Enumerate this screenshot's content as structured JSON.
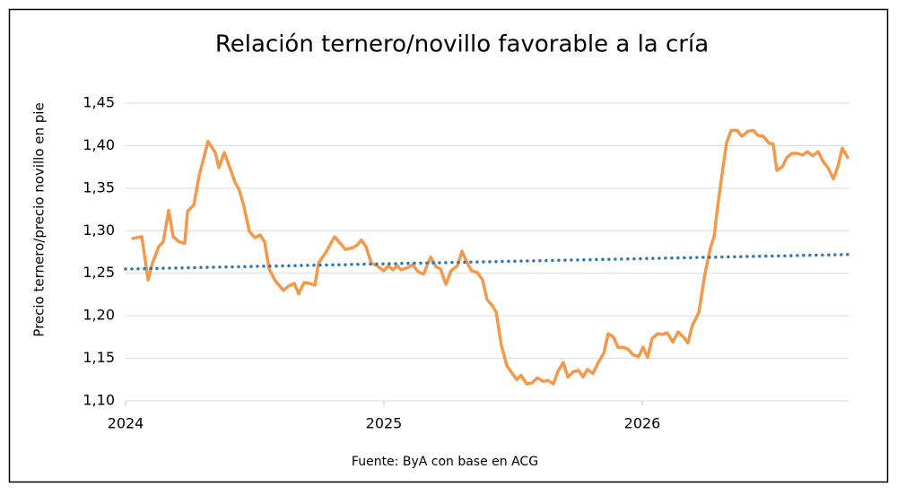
{
  "chart_data": {
    "type": "line",
    "title": "Relación ternero/novillo favorable a la cría",
    "y_label": "Precio ternero/precio novillo en pie",
    "source": "Fuente: ByA con base en ACG",
    "xlim": [
      2024,
      2026.8
    ],
    "xticks": [
      2024,
      2025,
      2026
    ],
    "ylim": [
      1.1,
      1.45
    ],
    "yticks": [
      {
        "value": 1.1,
        "label": "1,10"
      },
      {
        "value": 1.15,
        "label": "1,15"
      },
      {
        "value": 1.2,
        "label": "1,20"
      },
      {
        "value": 1.25,
        "label": "1,25"
      },
      {
        "value": 1.3,
        "label": "1,30"
      },
      {
        "value": 1.35,
        "label": "1,35"
      },
      {
        "value": 1.4,
        "label": "1,40"
      },
      {
        "value": 1.45,
        "label": "1,45"
      }
    ],
    "grid": true,
    "series": [
      {
        "color": "#f4994c",
        "style": "solid",
        "x": [
          2024.028,
          2024.063,
          2024.087,
          2024.104,
          2024.128,
          2024.146,
          2024.167,
          2024.184,
          2024.208,
          2024.229,
          2024.24,
          2024.264,
          2024.285,
          2024.319,
          2024.347,
          2024.361,
          2024.382,
          2024.399,
          2024.424,
          2024.441,
          2024.458,
          2024.479,
          2024.5,
          2024.521,
          2024.538,
          2024.556,
          2024.58,
          2024.611,
          2024.632,
          2024.653,
          2024.67,
          2024.691,
          2024.712,
          2024.733,
          2024.747,
          2024.778,
          2024.809,
          2024.826,
          2024.851,
          2024.878,
          2024.896,
          2024.913,
          2024.931,
          2024.951,
          2024.972,
          2025.0,
          2025.017,
          2025.035,
          2025.052,
          2025.066,
          2025.094,
          2025.111,
          2025.132,
          2025.153,
          2025.181,
          2025.201,
          2025.219,
          2025.24,
          2025.26,
          2025.285,
          2025.302,
          2025.326,
          2025.34,
          2025.361,
          2025.382,
          2025.399,
          2025.417,
          2025.434,
          2025.455,
          2025.476,
          2025.493,
          2025.514,
          2025.531,
          2025.552,
          2025.573,
          2025.594,
          2025.615,
          2025.635,
          2025.656,
          2025.674,
          2025.694,
          2025.712,
          2025.733,
          2025.753,
          2025.771,
          2025.788,
          2025.809,
          2025.826,
          2025.851,
          2025.868,
          2025.889,
          2025.906,
          2025.927,
          2025.944,
          2025.965,
          2025.986,
          2026.003,
          2026.021,
          2026.038,
          2026.059,
          2026.076,
          2026.097,
          2026.118,
          2026.139,
          2026.16,
          2026.177,
          2026.194,
          2026.219,
          2026.243,
          2026.264,
          2026.278,
          2026.292,
          2026.313,
          2026.326,
          2026.344,
          2026.368,
          2026.385,
          2026.41,
          2026.431,
          2026.448,
          2026.469,
          2026.49,
          2026.507,
          2026.521,
          2026.542,
          2026.559,
          2026.58,
          2026.601,
          2026.622,
          2026.639,
          2026.66,
          2026.681,
          2026.701,
          2026.719,
          2026.74,
          2026.757,
          2026.774,
          2026.795
        ],
        "values": [
          1.291,
          1.293,
          1.242,
          1.262,
          1.281,
          1.287,
          1.324,
          1.293,
          1.287,
          1.285,
          1.323,
          1.33,
          1.365,
          1.405,
          1.392,
          1.374,
          1.392,
          1.378,
          1.357,
          1.347,
          1.329,
          1.299,
          1.292,
          1.295,
          1.287,
          1.255,
          1.241,
          1.23,
          1.235,
          1.238,
          1.226,
          1.239,
          1.238,
          1.236,
          1.262,
          1.276,
          1.293,
          1.287,
          1.278,
          1.28,
          1.283,
          1.289,
          1.281,
          1.262,
          1.259,
          1.253,
          1.259,
          1.254,
          1.259,
          1.254,
          1.257,
          1.26,
          1.252,
          1.249,
          1.269,
          1.258,
          1.255,
          1.237,
          1.253,
          1.259,
          1.276,
          1.26,
          1.253,
          1.251,
          1.242,
          1.219,
          1.213,
          1.205,
          1.165,
          1.141,
          1.134,
          1.125,
          1.13,
          1.12,
          1.121,
          1.127,
          1.123,
          1.124,
          1.12,
          1.135,
          1.145,
          1.128,
          1.134,
          1.136,
          1.128,
          1.137,
          1.132,
          1.143,
          1.156,
          1.179,
          1.175,
          1.163,
          1.163,
          1.161,
          1.154,
          1.152,
          1.163,
          1.151,
          1.173,
          1.179,
          1.178,
          1.18,
          1.169,
          1.181,
          1.175,
          1.168,
          1.189,
          1.204,
          1.25,
          1.28,
          1.293,
          1.329,
          1.375,
          1.403,
          1.418,
          1.418,
          1.411,
          1.417,
          1.418,
          1.412,
          1.411,
          1.403,
          1.402,
          1.371,
          1.375,
          1.386,
          1.391,
          1.391,
          1.389,
          1.393,
          1.388,
          1.393,
          1.381,
          1.374,
          1.361,
          1.375,
          1.397,
          1.386
        ]
      },
      {
        "color": "#2e75b6",
        "style": "dotted",
        "x": [
          2024.0,
          2026.795
        ],
        "values": [
          1.255,
          1.272
        ]
      }
    ]
  }
}
